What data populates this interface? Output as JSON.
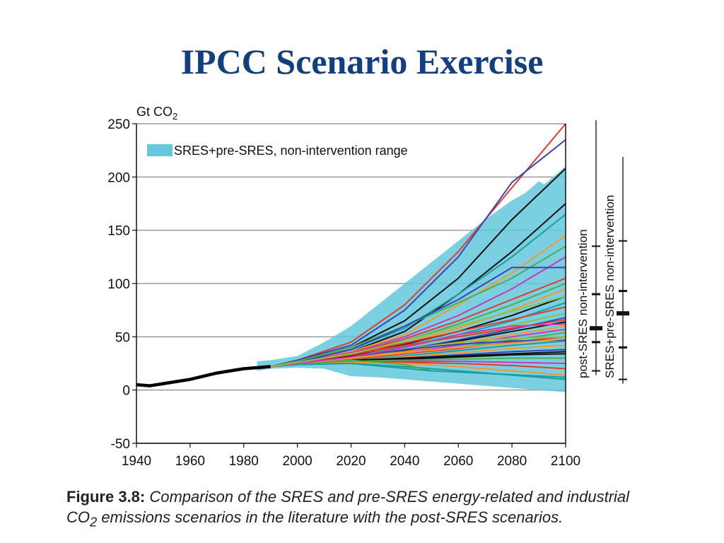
{
  "slide": {
    "title": "IPCC Scenario Exercise"
  },
  "caption": {
    "figure_label": "Figure 3.8:",
    "text_part1": " Comparison of the SRES and pre-SRES energy-related and industrial",
    "text_co": "CO",
    "text_sub": "2",
    "text_part2": " emissions scenarios in the literature with the post-SRES scenarios."
  },
  "chart_data": {
    "type": "line",
    "unit_label": "Gt CO",
    "unit_sub": "2",
    "xlim": [
      1940,
      2100
    ],
    "ylim": [
      -50,
      250
    ],
    "x_ticks": [
      "1940",
      "1960",
      "1980",
      "2000",
      "2020",
      "2040",
      "2060",
      "2080",
      "2100"
    ],
    "y_ticks": [
      "250",
      "200",
      "150",
      "100",
      "50",
      "0",
      "-50"
    ],
    "grid": "horizontal",
    "legend": {
      "label": "SRES+pre-SRES, non-intervention range",
      "placement": "top-left",
      "color": "#63c8dc"
    },
    "range_band": {
      "upper": [
        [
          1985,
          27
        ],
        [
          1990,
          28
        ],
        [
          2000,
          32
        ],
        [
          2010,
          45
        ],
        [
          2020,
          60
        ],
        [
          2030,
          80
        ],
        [
          2040,
          100
        ],
        [
          2050,
          120
        ],
        [
          2060,
          140
        ],
        [
          2070,
          160
        ],
        [
          2080,
          178
        ],
        [
          2085,
          185
        ],
        [
          2090,
          196
        ],
        [
          2092,
          193
        ],
        [
          2100,
          210
        ]
      ],
      "lower": [
        [
          1985,
          18
        ],
        [
          1990,
          20
        ],
        [
          2000,
          21
        ],
        [
          2010,
          20
        ],
        [
          2020,
          13
        ],
        [
          2030,
          12
        ],
        [
          2040,
          10
        ],
        [
          2050,
          8
        ],
        [
          2060,
          6
        ],
        [
          2070,
          4
        ],
        [
          2080,
          2
        ],
        [
          2090,
          0
        ],
        [
          2100,
          -2
        ]
      ]
    },
    "historical": {
      "name": "historical",
      "color": "#000000",
      "x": [
        1940,
        1945,
        1950,
        1955,
        1960,
        1965,
        1970,
        1975,
        1980,
        1985,
        1990
      ],
      "y": [
        5,
        4,
        6,
        8,
        10,
        13,
        16,
        18,
        20,
        21,
        22
      ]
    },
    "series": [
      {
        "color": "#e33b2e",
        "x": [
          1990,
          2000,
          2020,
          2040,
          2060,
          2080,
          2100
        ],
        "y": [
          22,
          28,
          45,
          80,
          130,
          190,
          250
        ]
      },
      {
        "color": "#3a45b5",
        "x": [
          1990,
          2000,
          2020,
          2040,
          2060,
          2080,
          2100
        ],
        "y": [
          22,
          28,
          42,
          75,
          125,
          195,
          235
        ]
      },
      {
        "color": "#111111",
        "x": [
          1990,
          2000,
          2020,
          2040,
          2060,
          2080,
          2100
        ],
        "y": [
          22,
          27,
          40,
          65,
          105,
          160,
          208
        ]
      },
      {
        "color": "#111111",
        "x": [
          1990,
          2000,
          2020,
          2040,
          2060,
          2080,
          2100
        ],
        "y": [
          22,
          26,
          36,
          55,
          90,
          130,
          175
        ]
      },
      {
        "color": "#1a9e9e",
        "x": [
          1990,
          2000,
          2020,
          2040,
          2060,
          2080,
          2100
        ],
        "y": [
          22,
          26,
          38,
          58,
          90,
          125,
          165
        ]
      },
      {
        "color": "#f29a2e",
        "x": [
          1990,
          2000,
          2020,
          2040,
          2060,
          2080,
          2100
        ],
        "y": [
          22,
          26,
          36,
          52,
          80,
          110,
          145
        ]
      },
      {
        "color": "#4cae4c",
        "x": [
          1990,
          2000,
          2020,
          2040,
          2060,
          2080,
          2100
        ],
        "y": [
          22,
          27,
          40,
          60,
          82,
          105,
          135
        ]
      },
      {
        "color": "#c93ab5",
        "x": [
          1990,
          2000,
          2020,
          2040,
          2060,
          2080,
          2100
        ],
        "y": [
          22,
          26,
          35,
          50,
          70,
          95,
          125
        ]
      },
      {
        "color": "#3a45b5",
        "x": [
          1990,
          2000,
          2020,
          2040,
          2060,
          2080,
          2100
        ],
        "y": [
          22,
          26,
          38,
          60,
          85,
          115,
          115
        ]
      },
      {
        "color": "#e33b2e",
        "x": [
          1990,
          2000,
          2020,
          2040,
          2060,
          2080,
          2100
        ],
        "y": [
          22,
          26,
          34,
          48,
          65,
          85,
          105
        ]
      },
      {
        "color": "#4cae4c",
        "x": [
          1990,
          2000,
          2020,
          2040,
          2060,
          2080,
          2100
        ],
        "y": [
          22,
          26,
          33,
          46,
          62,
          80,
          100
        ]
      },
      {
        "color": "#f29a2e",
        "x": [
          1990,
          2000,
          2020,
          2040,
          2060,
          2080,
          2100
        ],
        "y": [
          22,
          25,
          32,
          44,
          58,
          75,
          95
        ]
      },
      {
        "color": "#111111",
        "x": [
          1990,
          2000,
          2020,
          2040,
          2060,
          2080,
          2100
        ],
        "y": [
          22,
          25,
          32,
          43,
          55,
          70,
          88
        ]
      },
      {
        "color": "#1a9e9e",
        "x": [
          1990,
          2000,
          2020,
          2040,
          2060,
          2080,
          2100
        ],
        "y": [
          22,
          25,
          31,
          41,
          52,
          65,
          82
        ]
      },
      {
        "color": "#e33b2e",
        "x": [
          1990,
          2000,
          2020,
          2040,
          2060,
          2080,
          2100
        ],
        "y": [
          22,
          26,
          34,
          44,
          55,
          66,
          78
        ]
      },
      {
        "color": "#8bc34a",
        "x": [
          1990,
          2000,
          2020,
          2040,
          2060,
          2080,
          2100
        ],
        "y": [
          22,
          25,
          31,
          40,
          50,
          61,
          72
        ]
      },
      {
        "color": "#3a45b5",
        "x": [
          1990,
          2000,
          2020,
          2040,
          2060,
          2080,
          2100
        ],
        "y": [
          22,
          25,
          30,
          38,
          47,
          57,
          68
        ]
      },
      {
        "color": "#111111",
        "x": [
          1990,
          2000,
          2020,
          2040,
          2060,
          2080,
          2100
        ],
        "y": [
          22,
          25,
          30,
          37,
          46,
          55,
          64
        ]
      },
      {
        "color": "#f29a2e",
        "x": [
          1990,
          2000,
          2020,
          2040,
          2060,
          2080,
          2100
        ],
        "y": [
          22,
          25,
          30,
          36,
          44,
          52,
          60
        ]
      },
      {
        "color": "#c93ab5",
        "x": [
          1990,
          2000,
          2020,
          2040,
          2060,
          2080,
          2100
        ],
        "y": [
          22,
          25,
          29,
          35,
          42,
          50,
          57
        ]
      },
      {
        "color": "#4cae4c",
        "x": [
          1990,
          2000,
          2020,
          2040,
          2060,
          2080,
          2100
        ],
        "y": [
          22,
          25,
          29,
          34,
          40,
          47,
          54
        ]
      },
      {
        "color": "#e33b2e",
        "x": [
          1990,
          2000,
          2020,
          2040,
          2060,
          2080,
          2100
        ],
        "y": [
          22,
          25,
          29,
          34,
          39,
          45,
          50
        ]
      },
      {
        "color": "#1a9e9e",
        "x": [
          1990,
          2000,
          2020,
          2040,
          2060,
          2080,
          2100
        ],
        "y": [
          22,
          24,
          28,
          32,
          37,
          42,
          46
        ]
      },
      {
        "color": "#f29a2e",
        "x": [
          1990,
          2000,
          2020,
          2040,
          2060,
          2080,
          2100
        ],
        "y": [
          22,
          24,
          28,
          31,
          35,
          39,
          42
        ]
      },
      {
        "color": "#3a45b5",
        "x": [
          1990,
          2000,
          2020,
          2040,
          2060,
          2080,
          2100
        ],
        "y": [
          22,
          24,
          27,
          30,
          33,
          36,
          38
        ]
      },
      {
        "color": "#111111",
        "x": [
          1990,
          2000,
          2020,
          2040,
          2060,
          2080,
          2100
        ],
        "y": [
          22,
          24,
          27,
          29,
          31,
          33,
          34
        ]
      },
      {
        "color": "#4cae4c",
        "x": [
          1990,
          2000,
          2020,
          2040,
          2060,
          2080,
          2100
        ],
        "y": [
          22,
          24,
          27,
          28,
          29,
          30,
          30
        ]
      },
      {
        "color": "#c93ab5",
        "x": [
          1990,
          2000,
          2020,
          2040,
          2060,
          2080,
          2100
        ],
        "y": [
          22,
          24,
          26,
          27,
          27,
          26,
          25
        ]
      },
      {
        "color": "#e33b2e",
        "x": [
          1990,
          2000,
          2020,
          2040,
          2060,
          2080,
          2100
        ],
        "y": [
          22,
          24,
          26,
          26,
          25,
          23,
          20
        ]
      },
      {
        "color": "#f29a2e",
        "x": [
          1990,
          2000,
          2020,
          2040,
          2060,
          2080,
          2100
        ],
        "y": [
          22,
          24,
          26,
          25,
          22,
          18,
          14
        ]
      },
      {
        "color": "#1a9e9e",
        "x": [
          1990,
          2000,
          2020,
          2040,
          2060,
          2080,
          2100
        ],
        "y": [
          22,
          24,
          25,
          22,
          18,
          14,
          10
        ]
      },
      {
        "color": "#8bc34a",
        "x": [
          1990,
          2000,
          2020,
          2040,
          2060,
          2080,
          2100
        ],
        "y": [
          22,
          25,
          30,
          38,
          45,
          48,
          50
        ]
      },
      {
        "color": "#3a45b5",
        "x": [
          1990,
          2000,
          2020,
          2040,
          2060,
          2080,
          2100
        ],
        "y": [
          22,
          25,
          31,
          38,
          43,
          46,
          47
        ]
      },
      {
        "color": "#e33b2e",
        "x": [
          1990,
          2000,
          2020,
          2040,
          2060,
          2080,
          2100
        ],
        "y": [
          22,
          26,
          33,
          42,
          50,
          58,
          66
        ]
      },
      {
        "color": "#111111",
        "x": [
          1990,
          2000,
          2020,
          2040,
          2060,
          2080,
          2100
        ],
        "y": [
          22,
          25,
          28,
          30,
          32,
          34,
          36
        ]
      },
      {
        "color": "#4cae4c",
        "x": [
          1990,
          2000,
          2020,
          2040,
          2050
        ],
        "y": [
          22,
          25,
          28,
          24,
          18
        ]
      },
      {
        "color": "#1a9e9e",
        "x": [
          1990,
          2000,
          2020,
          2050,
          2100
        ],
        "y": [
          22,
          24,
          25,
          18,
          12
        ]
      },
      {
        "color": "#f29a2e",
        "x": [
          1990,
          2000,
          2020,
          2040,
          2060,
          2080,
          2100
        ],
        "y": [
          22,
          25,
          30,
          35,
          40,
          44,
          48
        ]
      },
      {
        "color": "#c93ab5",
        "x": [
          1990,
          2000,
          2020,
          2040,
          2060,
          2080,
          2100
        ],
        "y": [
          22,
          25,
          31,
          40,
          52,
          60,
          62
        ]
      },
      {
        "color": "#8bc34a",
        "x": [
          1990,
          2000,
          2020,
          2040,
          2060,
          2080,
          2100
        ],
        "y": [
          22,
          26,
          34,
          46,
          60,
          74,
          88
        ]
      }
    ],
    "side_bars": [
      {
        "label": "post-SRES non-intervention",
        "min": 18,
        "p10": 45,
        "median": 58,
        "p90": 90,
        "max": 135
      },
      {
        "label": "SRES+pre-SRES non-intervention",
        "min": 10,
        "p10": 40,
        "median": 72,
        "p90": 93,
        "max": 140
      }
    ]
  }
}
